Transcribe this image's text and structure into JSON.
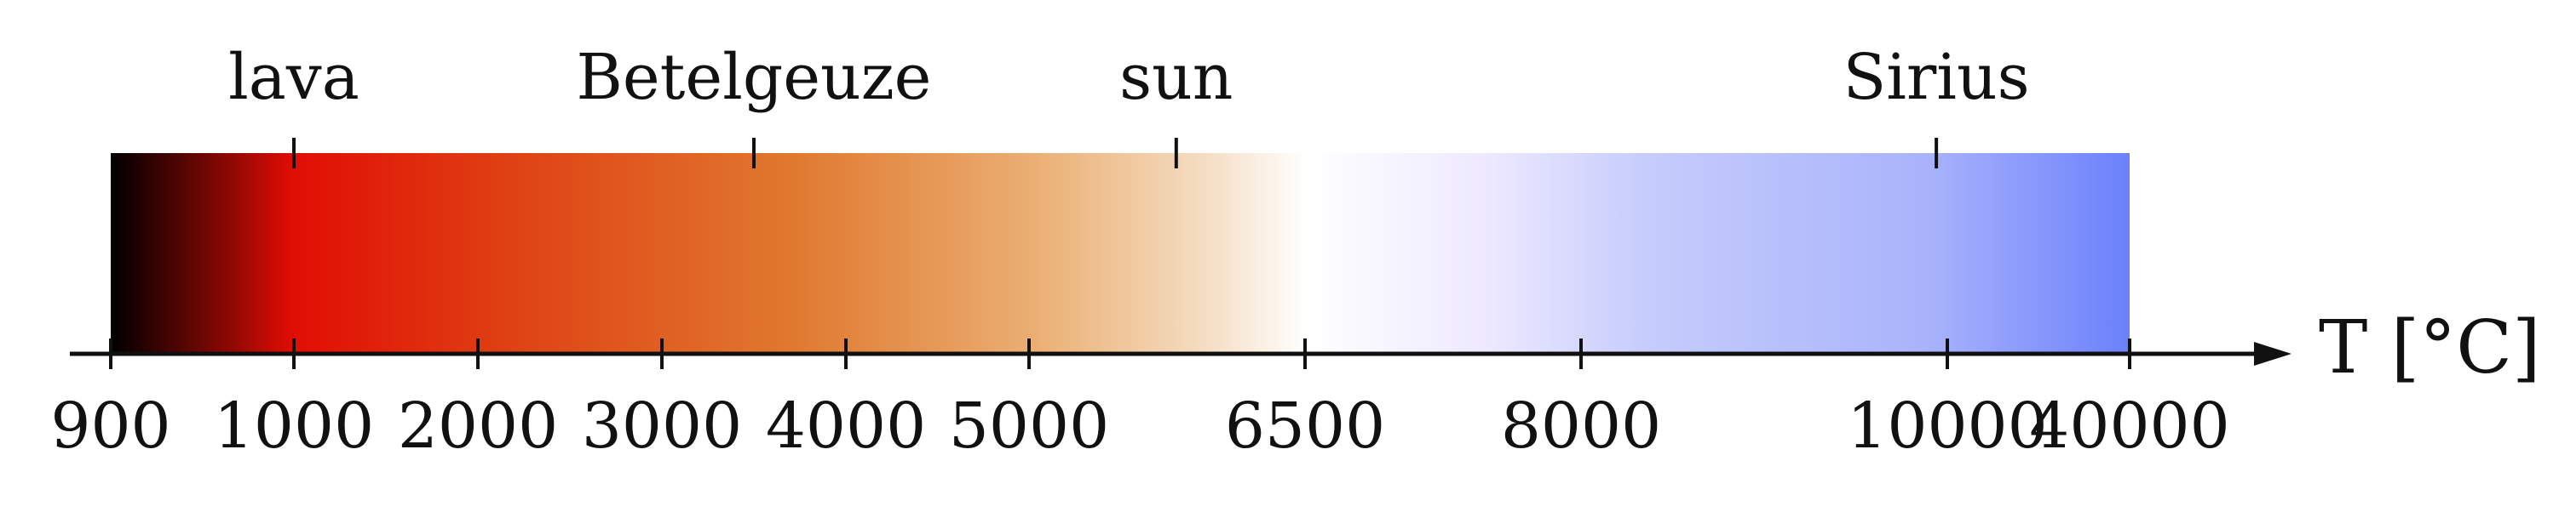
{
  "axis": {
    "label": "T [°C]",
    "ticks": [
      "900",
      "1000",
      "2000",
      "3000",
      "4000",
      "5000",
      "6500",
      "8000",
      "10000",
      "40000"
    ]
  },
  "markers": [
    {
      "name": "lava",
      "label": "lava",
      "value": 1000
    },
    {
      "name": "betelgeuze",
      "label": "Betelgeuze",
      "value": 3500
    },
    {
      "name": "sun",
      "label": "sun",
      "value": 5800
    },
    {
      "name": "sirius",
      "label": "Sirius",
      "value": 9940
    }
  ],
  "gradient_colors": {
    "black": "#000000",
    "dark_red": "#6a0603",
    "red": "#e10d04",
    "orange_red": "#df4214",
    "orange": "#e07a30",
    "light_orange": "#ebb075",
    "cream": "#f4dcc0",
    "white": "#ffffff",
    "lavender": "#eee9ff",
    "light_blue": "#c6ccfb",
    "blue": "#a9b3fb",
    "deep_blue": "#6b81fb"
  }
}
